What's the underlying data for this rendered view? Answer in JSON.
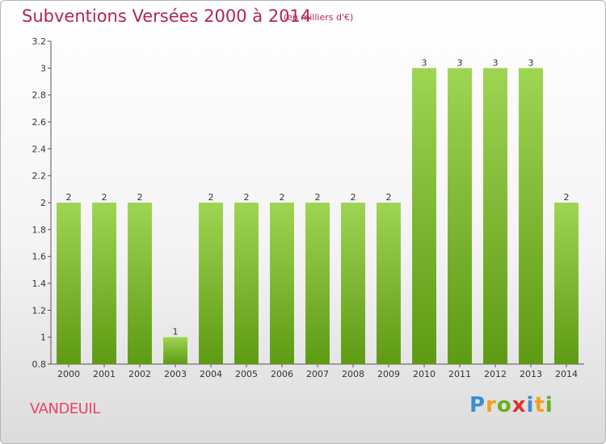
{
  "title": "Subventions Versées 2000 à 2014",
  "subtitle": "(en milliers d'€)",
  "commune": "VANDEUIL",
  "logo": "Proxiti",
  "colors": {
    "title": "#b4235a",
    "bar_top": "#9ed552",
    "bar_bottom": "#5e9a14",
    "commune": "#e8436a"
  },
  "chart_data": {
    "type": "bar",
    "title": "Subventions Versées 2000 à 2014",
    "subtitle": "(en milliers d'€)",
    "xlabel": "",
    "ylabel": "",
    "ylim": [
      0.8,
      3.2
    ],
    "yticks": [
      "0.8",
      "1",
      "1.2",
      "1.4",
      "1.6",
      "1.8",
      "2",
      "2.2",
      "2.4",
      "2.6",
      "2.8",
      "3",
      "3.2"
    ],
    "categories": [
      "2000",
      "2001",
      "2002",
      "2003",
      "2004",
      "2005",
      "2006",
      "2007",
      "2008",
      "2009",
      "2010",
      "2011",
      "2012",
      "2013",
      "2014"
    ],
    "values": [
      2,
      2,
      2,
      1,
      2,
      2,
      2,
      2,
      2,
      2,
      3,
      3,
      3,
      3,
      2
    ],
    "data_labels": [
      "2",
      "2",
      "2",
      "1",
      "2",
      "2",
      "2",
      "2",
      "2",
      "2",
      "3",
      "3",
      "3",
      "3",
      "2"
    ],
    "grid": false,
    "legend": "none"
  }
}
